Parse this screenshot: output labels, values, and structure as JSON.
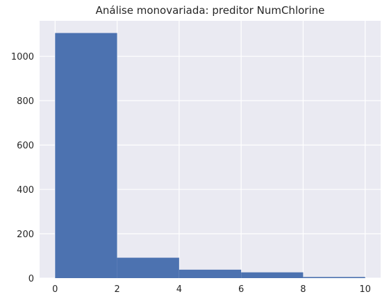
{
  "chart_data": {
    "type": "bar",
    "title": "Análise monovariada: preditor NumChlorine",
    "xlabel": "",
    "ylabel": "",
    "bins": [
      {
        "start": 0,
        "end": 2,
        "count": 1105
      },
      {
        "start": 2,
        "end": 4,
        "count": 92
      },
      {
        "start": 4,
        "end": 6,
        "count": 38
      },
      {
        "start": 6,
        "end": 8,
        "count": 26
      },
      {
        "start": 8,
        "end": 10,
        "count": 5
      }
    ],
    "xlim": [
      -0.5,
      10.5
    ],
    "ylim": [
      0,
      1160
    ],
    "x_ticks": [
      0,
      2,
      4,
      6,
      8,
      10
    ],
    "y_ticks": [
      0,
      200,
      400,
      600,
      800,
      1000
    ],
    "grid": true,
    "background_color": "#EAEAF2",
    "grid_color": "#FFFFFF",
    "bar_color": "#4C72B0"
  }
}
